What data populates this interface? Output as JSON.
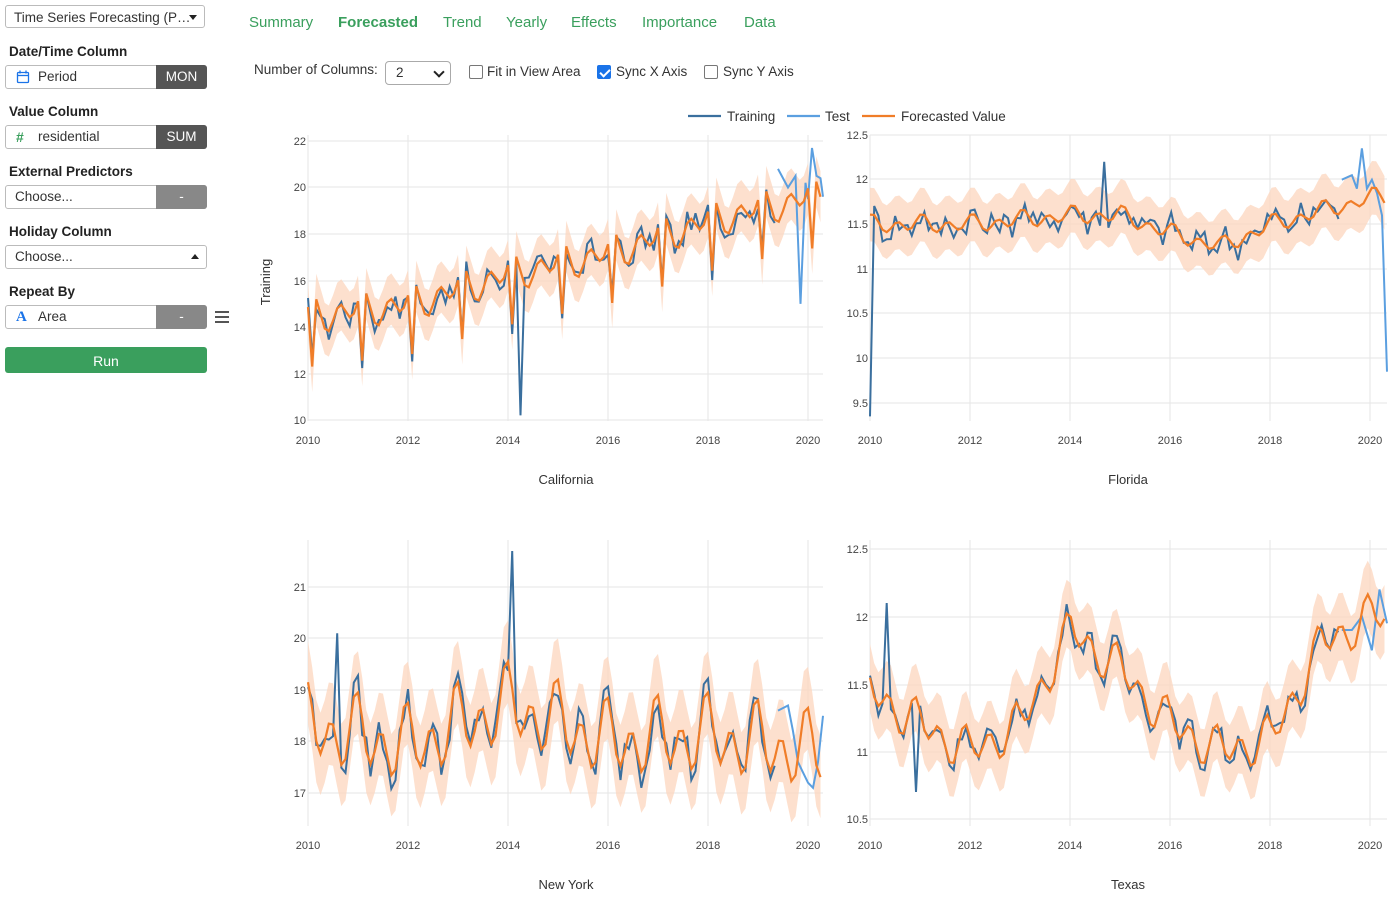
{
  "sidebar": {
    "analysis_select": "Time Series Forecasting (P…",
    "datetime": {
      "label": "Date/Time Column",
      "field": "Period",
      "unit": "MON",
      "icon": "calendar-icon"
    },
    "value": {
      "label": "Value Column",
      "field": "residential",
      "agg": "SUM",
      "icon": "hash-icon"
    },
    "external": {
      "label": "External Predictors",
      "placeholder": "Choose...",
      "btn": "-"
    },
    "holiday": {
      "label": "Holiday Column",
      "placeholder": "Choose..."
    },
    "repeat": {
      "label": "Repeat By",
      "field": "Area",
      "btn": "-",
      "icon": "text-type-icon"
    },
    "run": "Run"
  },
  "tabs": [
    "Summary",
    "Forecasted",
    "Trend",
    "Yearly",
    "Effects",
    "Importance",
    "Data"
  ],
  "active_tab": "Forecasted",
  "options": {
    "columns_label": "Number of Columns:",
    "columns_value": "2",
    "fit": {
      "label": "Fit in View Area",
      "checked": false
    },
    "syncx": {
      "label": "Sync X Axis",
      "checked": true
    },
    "syncy": {
      "label": "Sync Y Axis",
      "checked": false
    }
  },
  "colors": {
    "training": "#3a6f9e",
    "test": "#5b9fe0",
    "forecast": "#f07d28",
    "band": "#fcd5bd",
    "accent": "#3a9f5d"
  },
  "chart_data": [
    {
      "type": "line",
      "title": "California",
      "ylabel": "Training",
      "xlim": [
        2010,
        2020.3
      ],
      "ylim": [
        10,
        22.3
      ],
      "xticks": [
        2010,
        2012,
        2014,
        2016,
        2018,
        2020
      ],
      "yticks": [
        10,
        12,
        14,
        16,
        18,
        20,
        22
      ],
      "ytick_labels": [
        "10",
        "12",
        "14",
        "16",
        "18",
        "20",
        "22"
      ],
      "level": [
        [
          2010,
          14.5
        ],
        [
          2012,
          15.0
        ],
        [
          2014,
          16.3
        ],
        [
          2016,
          17.2
        ],
        [
          2018,
          18.6
        ],
        [
          2020,
          19.6
        ]
      ],
      "season": 0.9,
      "band": 1.1,
      "dips": [
        -3.0,
        0,
        0
      ],
      "noise": 0.5,
      "spikes": [
        [
          2014.25,
          10.2
        ]
      ],
      "test": [
        [
          2019.4,
          20.8
        ],
        [
          2019.6,
          20.0
        ],
        [
          2019.75,
          20.5
        ],
        [
          2019.85,
          15.0
        ],
        [
          2019.95,
          20.2
        ],
        [
          2020.0,
          19.5
        ],
        [
          2020.08,
          21.7
        ],
        [
          2020.17,
          20.5
        ],
        [
          2020.25,
          20.4
        ],
        [
          2020.3,
          19.6
        ]
      ]
    },
    {
      "type": "line",
      "title": "Florida",
      "xlim": [
        2010,
        2020.3
      ],
      "ylim": [
        9.3,
        12.5
      ],
      "xticks": [
        2010,
        2012,
        2014,
        2016,
        2018,
        2020
      ],
      "yticks": [
        9.5,
        10,
        10.5,
        11,
        11.5,
        12,
        12.5
      ],
      "ytick_labels": [
        "9.5",
        "10",
        "10.5",
        "11",
        "11.5",
        "12",
        "12.5"
      ],
      "level": [
        [
          2010,
          11.5
        ],
        [
          2012,
          11.5
        ],
        [
          2014,
          11.6
        ],
        [
          2015,
          11.6
        ],
        [
          2016,
          11.4
        ],
        [
          2017,
          11.25
        ],
        [
          2018,
          11.5
        ],
        [
          2020,
          11.8
        ]
      ],
      "season": 0.12,
      "band": 0.3,
      "dips": [
        0,
        0,
        0
      ],
      "noise": 0.15,
      "spikes": [
        [
          2010,
          9.35
        ],
        [
          2014.7,
          12.2
        ]
      ],
      "test": [
        [
          2019.4,
          12.0
        ],
        [
          2019.6,
          12.05
        ],
        [
          2019.7,
          11.9
        ],
        [
          2019.8,
          12.35
        ],
        [
          2019.9,
          11.9
        ],
        [
          2020.0,
          12.0
        ],
        [
          2020.1,
          11.85
        ],
        [
          2020.2,
          11.6
        ],
        [
          2020.3,
          9.85
        ]
      ]
    },
    {
      "type": "line",
      "title": "New York",
      "xlim": [
        2010,
        2020.3
      ],
      "ylim": [
        16.4,
        21.8
      ],
      "xticks": [
        2010,
        2012,
        2014,
        2016,
        2018,
        2020
      ],
      "yticks": [
        17,
        18,
        19,
        20,
        21
      ],
      "ytick_labels": [
        "17",
        "18",
        "19",
        "20",
        "21"
      ],
      "level": [
        [
          2010,
          18.3
        ],
        [
          2012,
          17.9
        ],
        [
          2014,
          18.7
        ],
        [
          2016,
          18.0
        ],
        [
          2018,
          18.1
        ],
        [
          2020,
          17.8
        ]
      ],
      "season": 0.9,
      "band": 0.8,
      "dips": [
        0,
        0,
        0
      ],
      "noise": 0.35,
      "spikes": [
        [
          2014.08,
          21.7
        ],
        [
          2010.55,
          20.1
        ]
      ],
      "test": [
        [
          2019.4,
          18.6
        ],
        [
          2019.6,
          18.7
        ],
        [
          2019.7,
          18.2
        ],
        [
          2019.8,
          17.6
        ],
        [
          2019.9,
          17.4
        ],
        [
          2020.0,
          17.2
        ],
        [
          2020.1,
          17.1
        ],
        [
          2020.2,
          17.6
        ],
        [
          2020.3,
          18.5
        ]
      ]
    },
    {
      "type": "line",
      "title": "Texas",
      "xlim": [
        2010,
        2020.3
      ],
      "ylim": [
        10.45,
        12.6
      ],
      "xticks": [
        2010,
        2012,
        2014,
        2016,
        2018,
        2020
      ],
      "yticks": [
        10.5,
        11,
        11.5,
        12,
        12.5
      ],
      "ytick_labels": [
        "10.5",
        "11",
        "11.5",
        "12",
        "12.5"
      ],
      "level": [
        [
          2010,
          11.45
        ],
        [
          2011,
          11.2
        ],
        [
          2012,
          11.0
        ],
        [
          2013,
          11.2
        ],
        [
          2014,
          11.9
        ],
        [
          2015,
          11.6
        ],
        [
          2016,
          11.2
        ],
        [
          2017,
          11.0
        ],
        [
          2018,
          11.1
        ],
        [
          2019,
          11.8
        ],
        [
          2020,
          12.0
        ]
      ],
      "season": 0.2,
      "band": 0.25,
      "dips": [
        0,
        0,
        0
      ],
      "noise": 0.08,
      "spikes": [
        [
          2010.3,
          12.1
        ],
        [
          2010.9,
          10.7
        ]
      ],
      "test": [
        [
          2019.4,
          11.9
        ],
        [
          2019.6,
          11.9
        ],
        [
          2019.8,
          12.0
        ],
        [
          2020.0,
          11.75
        ],
        [
          2020.15,
          12.2
        ],
        [
          2020.3,
          11.95
        ]
      ]
    }
  ],
  "legend": [
    "Training",
    "Test",
    "Forecasted Value"
  ]
}
